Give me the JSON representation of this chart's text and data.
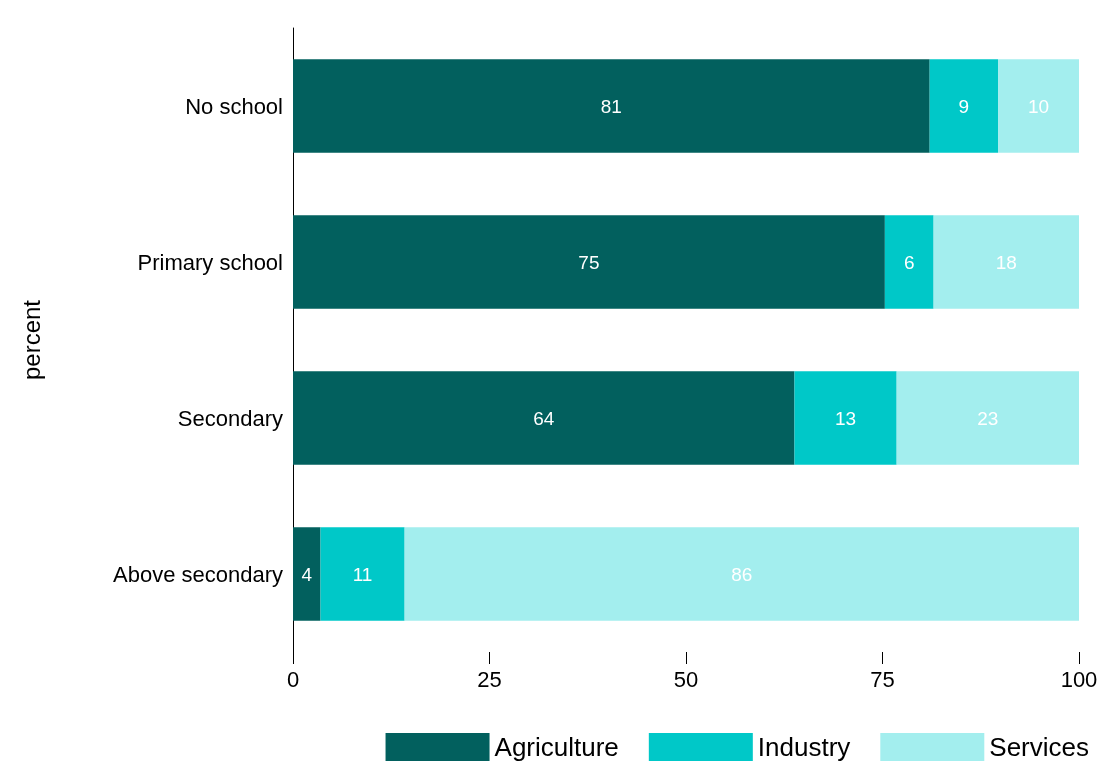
{
  "chart_data": {
    "type": "bar",
    "orientation": "horizontal",
    "stacked": true,
    "ylabel": "percent",
    "categories": [
      "No school",
      "Primary school",
      "Secondary",
      "Above secondary"
    ],
    "series": [
      {
        "name": "Agriculture",
        "color": "#02605e",
        "values": [
          81,
          75.3,
          63.8,
          3.5
        ],
        "value_labels": [
          "81",
          "75",
          "64",
          "4"
        ]
      },
      {
        "name": "Industry",
        "color": "#00c8c8",
        "values": [
          8.7,
          6.2,
          13,
          10.7
        ],
        "value_labels": [
          "9",
          "6",
          "13",
          "11"
        ]
      },
      {
        "name": "Services",
        "color": "#a3eeee",
        "values": [
          10.3,
          18.5,
          23.2,
          85.8
        ],
        "value_labels": [
          "10",
          "18",
          "23",
          "86"
        ]
      }
    ],
    "xlim": [
      0,
      100
    ],
    "xticks": [
      0,
      25,
      50,
      75,
      100
    ],
    "grid": false,
    "legend": "bottom"
  }
}
